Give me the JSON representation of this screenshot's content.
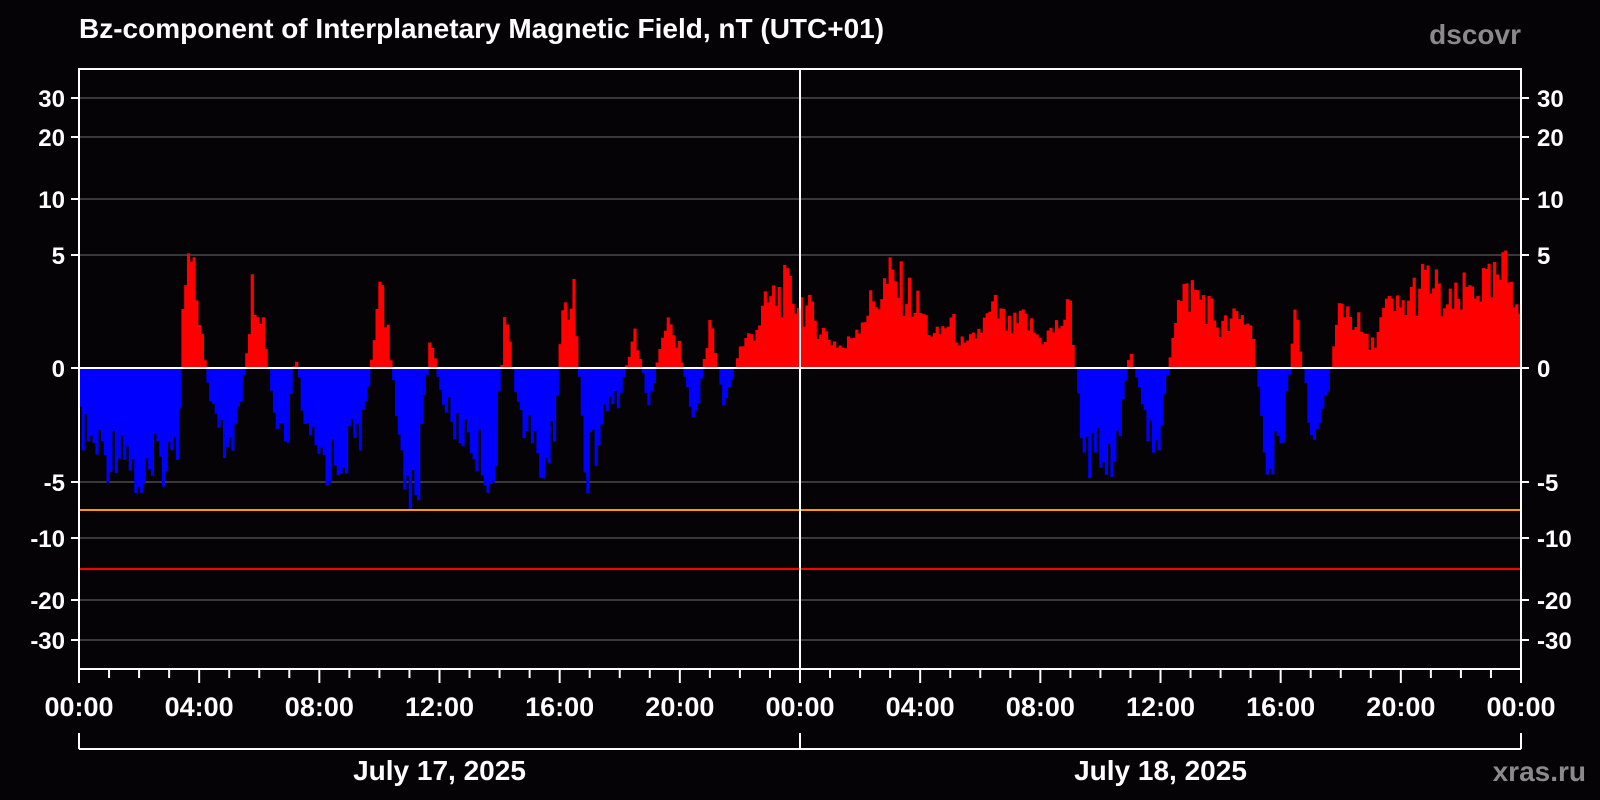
{
  "chart_data": {
    "type": "bar",
    "title": "Bz-component of Interplanetary Magnetic Field, nT (UTC+01)",
    "brand": "dscovr",
    "watermark": "xras.ru",
    "unit": "nT",
    "y_ticks": [
      30,
      20,
      10,
      5,
      0,
      -5,
      -10,
      -20,
      -30
    ],
    "y_tick_labels": [
      "30",
      "20",
      "10",
      "5",
      "0",
      "-5",
      "-10",
      "-20",
      "-30"
    ],
    "y_range": [
      -40,
      40
    ],
    "x_tick_labels": [
      "00:00",
      "04:00",
      "08:00",
      "12:00",
      "16:00",
      "20:00",
      "00:00",
      "04:00",
      "08:00",
      "12:00",
      "16:00",
      "20:00",
      "00:00"
    ],
    "x_range_hours": [
      0,
      48
    ],
    "days": [
      {
        "label": "July 17, 2025",
        "start_hour": 0,
        "end_hour": 24
      },
      {
        "label": "July 18, 2025",
        "start_hour": 24,
        "end_hour": 48
      }
    ],
    "threshold_lines": [
      {
        "value": -7.5,
        "color": "#ff9a00"
      },
      {
        "value": -15,
        "color": "#ff0000"
      }
    ],
    "colors": {
      "positive": "#ff0000",
      "negative": "#0000ff",
      "background": "#050305",
      "grid": "#6e6e6e",
      "axis": "#ffffff"
    },
    "series": [
      {
        "x_hours": [
          0,
          0.5,
          1,
          1.5,
          1.9,
          2.2,
          2.6,
          3.0,
          3.3,
          3.5,
          3.7,
          4.0,
          4.3,
          4.6,
          5.0,
          5.4,
          5.8,
          6.1,
          6.5,
          6.9,
          7.2,
          7.6,
          8.0,
          8.5,
          9.0,
          9.5,
          10.0,
          10.3,
          10.6,
          11.0,
          11.3,
          11.7,
          12.0,
          12.5,
          13.0,
          13.5,
          13.8,
          14.2,
          14.6,
          15.0,
          15.4,
          15.8,
          16.1,
          16.5,
          16.9,
          17.2,
          17.6,
          18.0,
          18.5,
          19.0,
          19.5,
          20.0,
          20.5,
          21.0,
          21.5,
          22.0,
          22.5,
          23.0,
          23.5,
          24.0,
          24.5,
          25.0,
          25.5,
          26.0,
          26.5,
          27.0,
          27.5,
          28.0,
          28.5,
          29.0,
          29.5,
          30.0,
          30.5,
          31.0,
          31.5,
          32.0,
          32.5,
          33.0,
          33.5,
          34.0,
          34.5,
          35.0,
          35.5,
          36.0,
          36.5,
          37.0,
          37.5,
          38.0,
          38.5,
          39.0,
          39.5,
          40.0,
          40.5,
          41.0,
          41.5,
          42.0,
          42.5,
          43.0,
          43.5,
          44.0,
          44.5,
          45.0,
          45.5,
          46.0,
          46.5,
          47.0,
          47.5,
          47.9
        ],
        "values": [
          -3,
          -4,
          -4.5,
          -3.5,
          -6,
          -6.5,
          -5,
          -4.5,
          -4.5,
          4,
          5.5,
          3,
          -1,
          -3.5,
          -4,
          -2,
          4.5,
          3,
          -2.5,
          -5,
          1,
          -4,
          -4.5,
          -5,
          -4,
          -3,
          4,
          2,
          -3,
          -6.5,
          -6,
          2,
          -1,
          -3,
          -3.5,
          -5,
          -6,
          3,
          -2,
          -3.5,
          -5,
          -4,
          3,
          3.5,
          -6,
          -4,
          -2,
          -1.5,
          2,
          -2,
          2.5,
          1,
          -3,
          2.5,
          -2,
          1,
          2,
          3.5,
          4,
          3.5,
          2.5,
          1.5,
          1,
          2.5,
          3.5,
          4.5,
          4,
          3,
          1.5,
          2.5,
          1,
          2,
          3,
          2,
          2.5,
          1.5,
          2,
          3,
          -5,
          -4,
          -4.5,
          1,
          -3,
          -3.5,
          3,
          4,
          3.5,
          2,
          2.5,
          2.5,
          -4,
          -5,
          3,
          -3,
          -2,
          3.5,
          2.5,
          1,
          3,
          3,
          4,
          4.5,
          3,
          3.5,
          4.5,
          4,
          5,
          4
        ]
      }
    ]
  }
}
